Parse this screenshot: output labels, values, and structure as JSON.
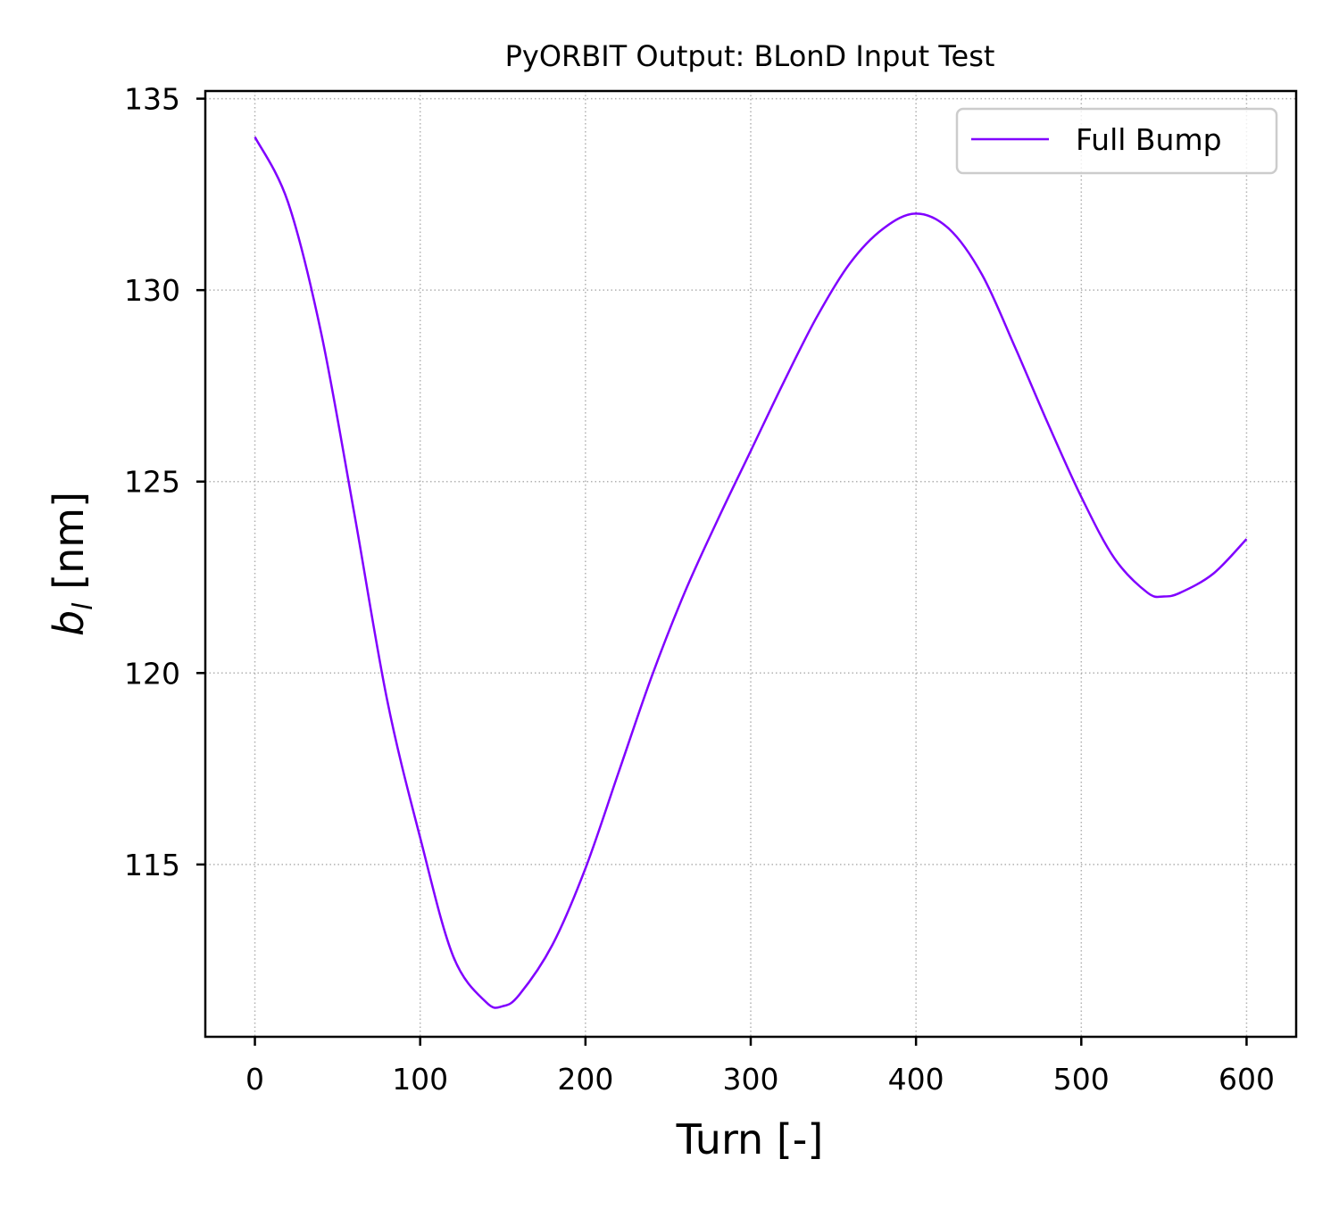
{
  "chart_data": {
    "type": "line",
    "title": "PyORBIT Output: BLonD Input Test",
    "xlabel": "Turn [-]",
    "ylabel_main": "b",
    "ylabel_sub": "l",
    "ylabel_unit": " [nm]",
    "xlim": [
      -30,
      630
    ],
    "ylim": [
      110.5,
      135.2
    ],
    "xticks": [
      0,
      100,
      200,
      300,
      400,
      500,
      600
    ],
    "yticks": [
      115,
      120,
      125,
      130,
      135
    ],
    "grid": true,
    "legend_position": "top-right",
    "series": [
      {
        "name": "Full Bump",
        "color": "#8000ff",
        "x": [
          0,
          20,
          40,
          60,
          80,
          100,
          120,
          140,
          150,
          160,
          180,
          200,
          220,
          240,
          260,
          280,
          300,
          320,
          340,
          360,
          380,
          400,
          420,
          440,
          460,
          480,
          500,
          520,
          540,
          550,
          560,
          580,
          600
        ],
        "y": [
          134.0,
          132.3,
          128.9,
          124.2,
          119.3,
          115.7,
          112.6,
          111.4,
          111.3,
          111.6,
          112.9,
          114.9,
          117.4,
          119.9,
          122.1,
          124.0,
          125.8,
          127.6,
          129.3,
          130.7,
          131.6,
          132.0,
          131.6,
          130.4,
          128.5,
          126.5,
          124.6,
          123.0,
          122.1,
          122.0,
          122.1,
          122.6,
          123.5
        ]
      }
    ]
  }
}
